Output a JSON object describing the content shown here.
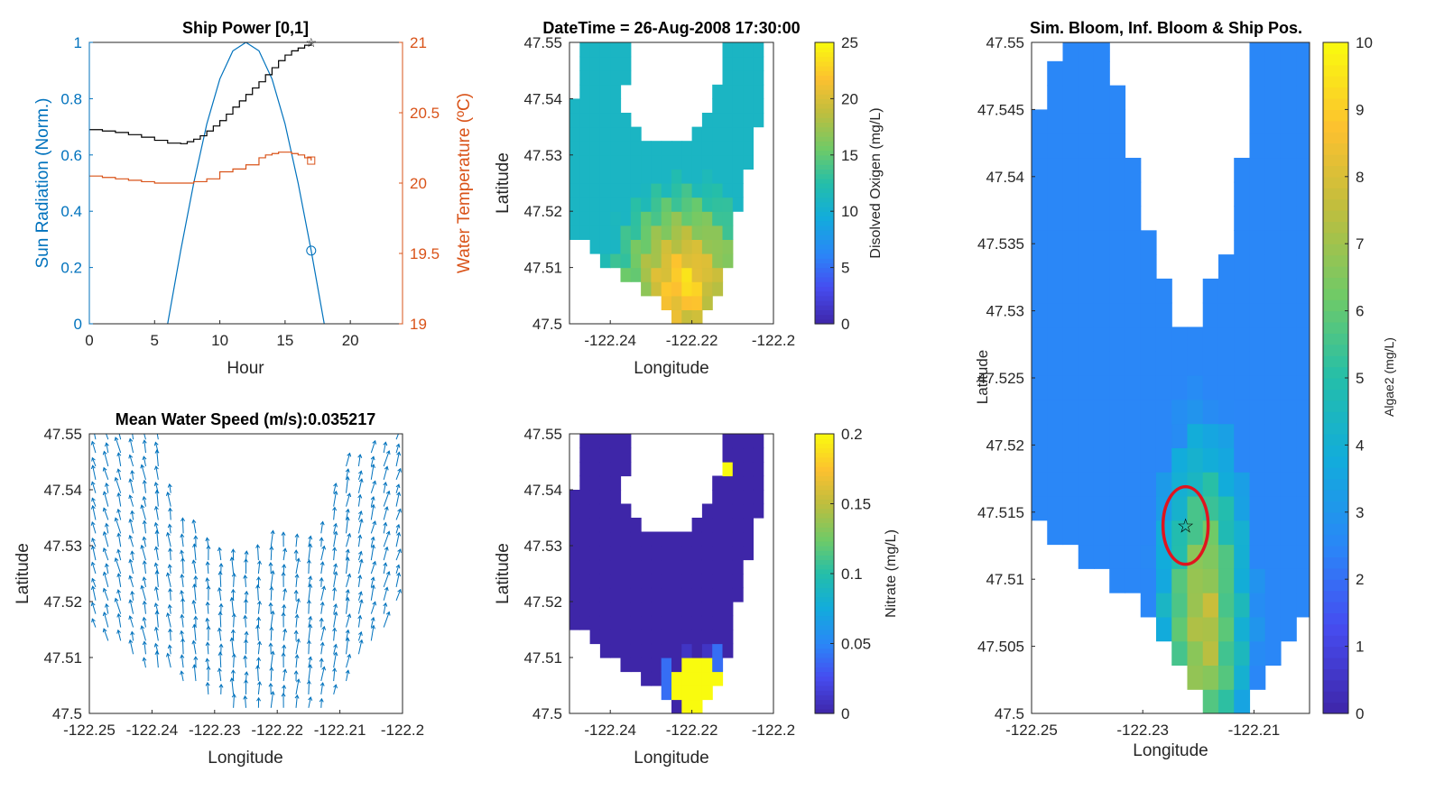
{
  "colors": {
    "blue": "#0072BD",
    "orange": "#D95319",
    "black": "#000000",
    "axis": "#262626",
    "quiver": "#0072BD",
    "ellipse": "#E0141E"
  },
  "chart_data": [
    {
      "id": "ship-power",
      "type": "line",
      "title": "Ship Power [0,1]",
      "xlabel": "Hour",
      "ylabel": "Sun Radiation (Norm.)",
      "ylabel_right": "Water Temperature (ºC)",
      "xlim": [
        0,
        24
      ],
      "ylim": [
        0,
        1
      ],
      "ylim_right": [
        19,
        21
      ],
      "xticks": [
        0,
        5,
        10,
        15,
        20
      ],
      "yticks": [
        0,
        0.2,
        0.4,
        0.6,
        0.8,
        1
      ],
      "yticks_right": [
        19,
        19.5,
        20,
        20.5,
        21
      ],
      "series": [
        {
          "axis": "left",
          "color": "#0072BD",
          "marker_end": "circle",
          "x": [
            6,
            7,
            8,
            9,
            10,
            11,
            12,
            13,
            14,
            15,
            16,
            17,
            18
          ],
          "y": [
            0,
            0.26,
            0.5,
            0.71,
            0.87,
            0.97,
            1.0,
            0.97,
            0.87,
            0.71,
            0.5,
            0.26,
            0
          ]
        },
        {
          "axis": "left",
          "color": "#000000",
          "marker_end": "star",
          "step": true,
          "x": [
            0,
            1,
            2,
            3,
            4,
            5,
            6,
            7,
            7.5,
            8,
            8.5,
            9,
            9.5,
            10,
            10.5,
            11,
            11.5,
            12,
            12.5,
            13,
            13.5,
            14,
            14.5,
            15,
            15.5,
            16,
            16.5,
            17
          ],
          "y": [
            0.69,
            0.685,
            0.68,
            0.672,
            0.663,
            0.652,
            0.642,
            0.64,
            0.647,
            0.656,
            0.668,
            0.685,
            0.703,
            0.722,
            0.745,
            0.77,
            0.792,
            0.815,
            0.838,
            0.86,
            0.885,
            0.91,
            0.935,
            0.955,
            0.97,
            0.98,
            0.99,
            1.0
          ]
        },
        {
          "axis": "right",
          "color": "#D95319",
          "marker_end": "square",
          "step": true,
          "x": [
            0,
            1,
            2,
            3,
            4,
            5,
            6,
            7,
            8,
            9,
            10,
            11,
            12,
            13,
            13.5,
            14,
            14.5,
            15,
            15.5,
            16,
            16.5,
            17
          ],
          "y": [
            20.05,
            20.04,
            20.03,
            20.02,
            20.01,
            20.0,
            20.0,
            20.0,
            20.01,
            20.03,
            20.08,
            20.1,
            20.13,
            20.18,
            20.2,
            20.21,
            20.22,
            20.22,
            20.21,
            20.2,
            20.18,
            20.16
          ]
        }
      ]
    },
    {
      "id": "oxygen-map",
      "type": "heatmap",
      "title": "DateTime = 26-Aug-2008 17:30:00",
      "xlabel": "Longitude",
      "ylabel": "Latitude",
      "colorbar_label": "Disolved Oxigen (mg/L)",
      "xlim": [
        -122.25,
        -122.2
      ],
      "ylim": [
        47.5,
        47.55
      ],
      "clim": [
        0,
        25
      ],
      "xticks": [
        -122.24,
        -122.22,
        -122.2
      ],
      "yticks": [
        47.5,
        47.51,
        47.52,
        47.53,
        47.54,
        47.55
      ],
      "cticks": [
        0,
        5,
        10,
        15,
        20,
        25
      ]
    },
    {
      "id": "water-speed",
      "type": "scatter",
      "title": "Mean Water Speed (m/s):0.035217",
      "xlabel": "Longitude",
      "ylabel": "Latitude",
      "xlim": [
        -122.25,
        -122.2
      ],
      "ylim": [
        47.5,
        47.55
      ],
      "xticks": [
        -122.25,
        -122.24,
        -122.23,
        -122.22,
        -122.21,
        -122.2
      ],
      "yticks": [
        47.5,
        47.51,
        47.52,
        47.53,
        47.54,
        47.55
      ]
    },
    {
      "id": "nitrate-map",
      "type": "heatmap",
      "title": "",
      "xlabel": "Longitude",
      "ylabel": "Latitude",
      "colorbar_label": "Nitrate (mg/L)",
      "xlim": [
        -122.25,
        -122.2
      ],
      "ylim": [
        47.5,
        47.55
      ],
      "clim": [
        0,
        0.2
      ],
      "xticks": [
        -122.24,
        -122.22,
        -122.2
      ],
      "yticks": [
        47.5,
        47.51,
        47.52,
        47.53,
        47.54,
        47.55
      ],
      "cticks": [
        0,
        0.05,
        0.1,
        0.15,
        0.2
      ]
    },
    {
      "id": "algae-map",
      "type": "heatmap",
      "title": "Sim. Bloom, Inf. Bloom & Ship Pos.",
      "xlabel": "Longitude",
      "ylabel": "Latitude",
      "colorbar_label": "Algae2 (mg/L)",
      "xlim": [
        -122.25,
        -122.2
      ],
      "ylim": [
        47.5,
        47.55
      ],
      "clim": [
        0,
        10
      ],
      "xticks": [
        -122.25,
        -122.23,
        -122.21
      ],
      "yticks": [
        47.5,
        47.505,
        47.51,
        47.515,
        47.52,
        47.525,
        47.53,
        47.535,
        47.54,
        47.545,
        47.55
      ],
      "cticks": [
        0,
        1,
        2,
        3,
        4,
        5,
        6,
        7,
        8,
        9,
        10
      ],
      "ship_position": [
        -122.2223,
        47.514
      ]
    }
  ]
}
